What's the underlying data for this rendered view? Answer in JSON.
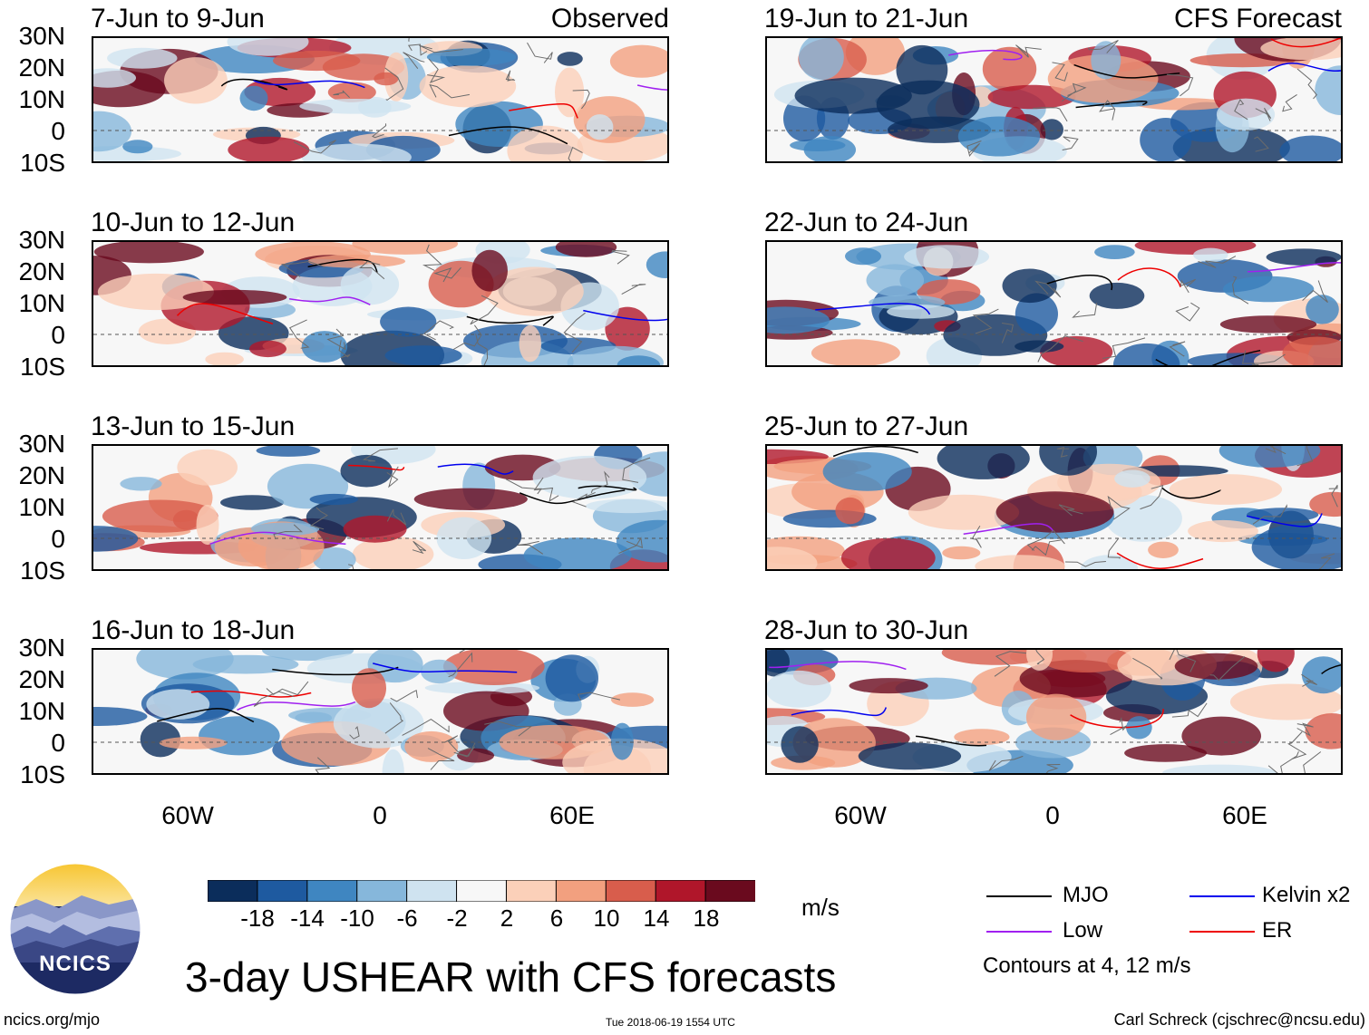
{
  "panels_observed": [
    {
      "title": "7-Jun to 9-Jun",
      "tag": "Observed"
    },
    {
      "title": "10-Jun to 12-Jun",
      "tag": ""
    },
    {
      "title": "13-Jun to 15-Jun",
      "tag": ""
    },
    {
      "title": "16-Jun to 18-Jun",
      "tag": ""
    }
  ],
  "panels_forecast": [
    {
      "title": "19-Jun to 21-Jun",
      "tag": "CFS Forecast"
    },
    {
      "title": "22-Jun to 24-Jun",
      "tag": ""
    },
    {
      "title": "25-Jun to 27-Jun",
      "tag": ""
    },
    {
      "title": "28-Jun to 30-Jun",
      "tag": ""
    }
  ],
  "lat_labels": [
    "30N",
    "20N",
    "10N",
    "0",
    "10S"
  ],
  "lon_labels": [
    "60W",
    "0",
    "60E"
  ],
  "colorbar": {
    "labels": [
      "-18",
      "-14",
      "-10",
      "-6",
      "-2",
      "2",
      "6",
      "10",
      "14",
      "18"
    ],
    "colors": [
      "#0b2d5b",
      "#1e5aa0",
      "#3f86c1",
      "#86b7db",
      "#cfe3f0",
      "#f7f7f7",
      "#fbd0b9",
      "#f2a07f",
      "#d85d4c",
      "#b0162a",
      "#6a0a1e"
    ],
    "units": "m/s"
  },
  "legend": {
    "items": [
      {
        "label": "MJO",
        "color": "#000000"
      },
      {
        "label": "Kelvin x2",
        "color": "#0000ee"
      },
      {
        "label": "Low",
        "color": "#a020f0"
      },
      {
        "label": "ER",
        "color": "#ee0000"
      }
    ],
    "note": "Contours at 4, 12 m/s"
  },
  "logo_text": "NCICS",
  "main_title": "3-day USHEAR with CFS forecasts",
  "footer": {
    "left": "ncics.org/mjo",
    "center": "Tue 2018-06-19 1554 UTC",
    "right": "Carl Schreck (cjschrec@ncsu.edu)"
  }
}
